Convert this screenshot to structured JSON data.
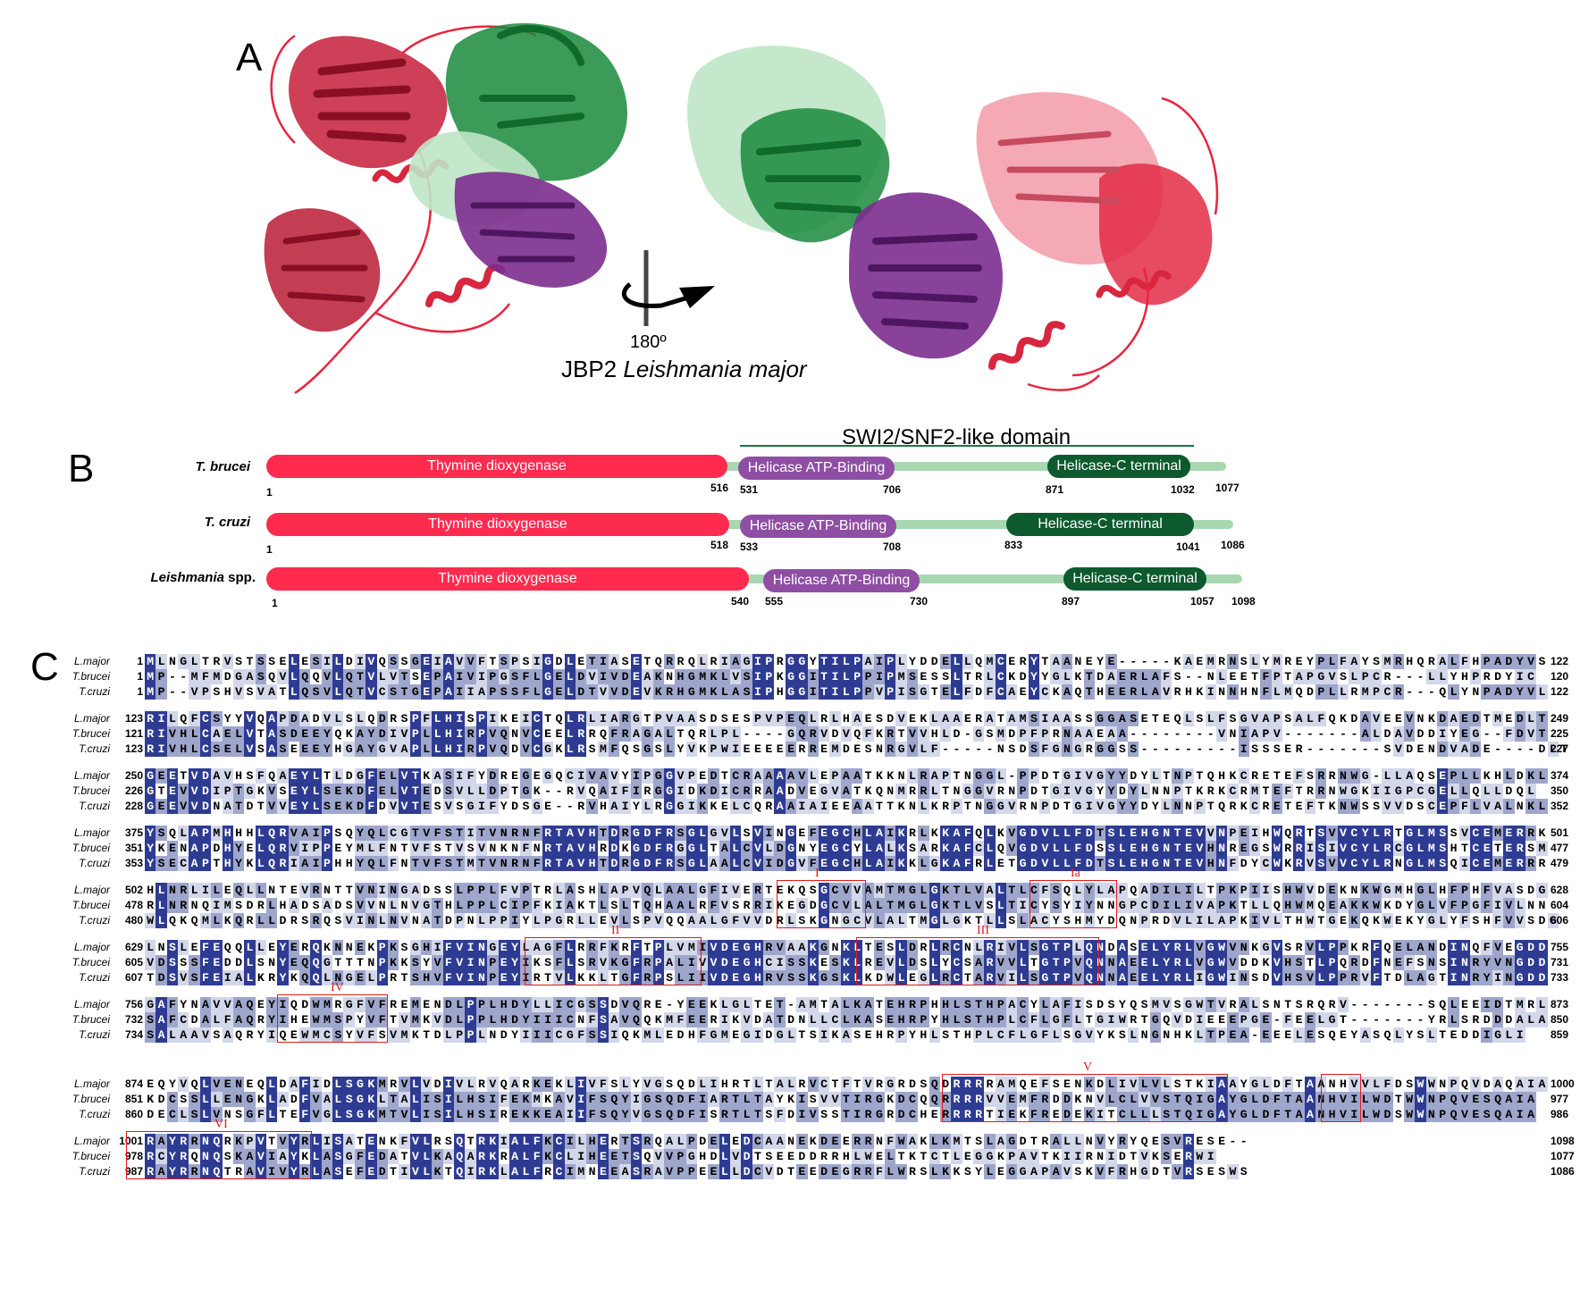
{
  "figure": {
    "panel_letters": [
      "A",
      "B",
      "C"
    ],
    "colors": {
      "dioxygenase": "#ff2b4f",
      "helicase_atp": "#8e4ea3",
      "helicase_c": "#0c5a2e",
      "linker": "#a8d8b0",
      "conserved_dark": "#2e3b92",
      "conserved_mid": "#9ea6cc",
      "conserved_light": "#d3d7ea",
      "motif_box": "#e11b1b"
    }
  },
  "panel_a": {
    "rotation_label": "180º",
    "caption_prefix": "JBP2 ",
    "caption_species": "Leishmania major"
  },
  "panel_b": {
    "domain_title": "SWI2/SNF2-like domain",
    "rows": [
      {
        "species": "T. brucei",
        "start": "1",
        "dioxygenase": {
          "label": "Thymine dioxygenase",
          "end": "516"
        },
        "atp": {
          "label": "Helicase ATP-Binding",
          "start": "531",
          "end": "706"
        },
        "hc": {
          "label": "Helicase-C terminal",
          "start": "871",
          "end": "1032"
        },
        "length": "1077"
      },
      {
        "species": "T. cruzi",
        "start": "1",
        "dioxygenase": {
          "label": "Thymine dioxygenase",
          "end": "518"
        },
        "atp": {
          "label": "Helicase ATP-Binding",
          "start": "533",
          "end": "708"
        },
        "hc": {
          "label": "Helicase-C terminal",
          "start": "833",
          "end": "1041"
        },
        "length": "1086"
      },
      {
        "species": "Leishmania",
        "species_suffix": " spp.",
        "start": "1",
        "dioxygenase": {
          "label": "Thymine dioxygenase",
          "end": "540"
        },
        "atp": {
          "label": "Helicase ATP-Binding",
          "start": "555",
          "end": "730"
        },
        "hc": {
          "label": "Helicase-C terminal",
          "start": "897",
          "end": "1057"
        },
        "length": "1098"
      }
    ]
  },
  "panel_c": {
    "species": [
      "L.major",
      "T.brucei",
      "T.cruzi"
    ],
    "motif_labels": [
      "I",
      "Ia",
      "II",
      "III",
      "IV",
      "V",
      "VI"
    ],
    "blocks": [
      {
        "starts": [
          "1",
          "1",
          "1"
        ],
        "ends": [
          "122",
          "120",
          "122"
        ],
        "seqs": [
          "MLNGLTRVSTSSELESILDIVQSSGEIAVVFTSPSIGDLETIASETQRRQLRIAGIPRGGYTILPAIPLYDDELLQMCERYTAANEYE-----KAEMRNSLYMREYPLFAYSMRHQRALFHPADYVS",
          "MP--MFMDGASQVLQQVLQTVLVTSEPAIVIPGSFLGELDVIVDEAKNHGMKLVSIPKGGITILPPIPMSESSLTRLCKDYYGLKTDAERLAFS--NLEETFPTAPGVSLPCR---LLYHPRDYIC",
          "MP--VPSHVSVATLQSVLQTVCSTGEPAIIAPSSFLGELDTVVDEVKRHGMKLASIPHGGITILPPVPISGTELFDFCAEYCKAQTHEERLAVRHKINNHNFLMQDPLLRMPCR---QLYNPADYVL"
        ]
      },
      {
        "starts": [
          "123",
          "121",
          "123"
        ],
        "ends": [
          "249",
          "225",
          "227"
        ],
        "seqs": [
          "RILQFCSYYVQAPDADVLSLQDRSPFLHISPIKEICTQLRLIARGTPVAASDSESPVPEQLRLHAESDVEKLAAERATAMSIAASSGGASETEQLSLFSGVAPSALFQKDAVEEVNKDAEDTMEDLT",
          "RIVHLCAELVTASDEEYQKAYDIVPLLHIRPVQNVCEELRRQFRAGALTQRLPL----GQRVDVQFKRTVVHLD-GSMDPFPRNAAEAA--------VNIAPV-------ALDAVDDIYEG--FDVT",
          "RIVHLCSELVSASEEEYHGAYGVAPLLHIRPVQDVCGKLRSMFQSGSLYVKPWIEEEEERREMDESNRGVLF-----NSDSFGNGRGGSS---------ISSSER-------SVDENDVADE----DLT"
        ]
      },
      {
        "starts": [
          "250",
          "226",
          "228"
        ],
        "ends": [
          "374",
          "350",
          "352"
        ],
        "seqs": [
          "GEETVDAVHSFQAEYLTLDGFELVTKASIFYDREGEGQCIVAVYIPGGVPEDTCRAAAAVLEPAATKKNLRAPTNGGL-PPDTGIVGYYDYLTNPTQHKCRETEFSRRNWG-LLAQSEPLLKHLDKL",
          "GTEVVDIPTGKVSEYLSEKDFELVTEDSVLLDPTGK--RVQAIFIRGGIDKDICRRAADVEGVATKQNMRRLTNGGVRNPDTGIVGYYDYLNNPTKRKCRMTEFTRRNWGKIIGPCGELLQLLDQL",
          "GEEVVDNATDTVVEYLSEKDFDVVTESVSGIFYDSGE--RVHAIYLRGGIKKELCQRAAIAIEEAATTKNLKRPTNGGVRNPDTGIVGYYDYLNNPTQRKCRETEFTKNWSSVVDSCEPFLVALNKL"
        ]
      },
      {
        "starts": [
          "375",
          "351",
          "353"
        ],
        "ends": [
          "501",
          "477",
          "479"
        ],
        "seqs": [
          "YSQLAPMHHHLQRVAIPSQYQLCGTVFSTITVNRNFRTAVHTDRGDFRSGLGVLSVINGEFEGCHLAIKRLKKAFQLKVGDVLLFDTSLEHGNTEVVNPEIHWQRTSVVCYLRTGLMSSVCEMERRK",
          "YKENAPDHYELQRVIPPEYMLFNTVFSTVSVNKNFNRTAVHRDKGDFRGGLTALCVLDGNYEGCYLALKSARKAFCLQVGDVLLFDSSLEHGNTEVHNREGSWRRISIVCYLRCGLMSHTCETERSM",
          "YSECAPTHYKLQRIAIPHHYQLFNTVFSTMTVNRNFRTAVHTDRGDFRSGLAALCVIDGVFEGCHLAIKKLGKAFRLETGDVLLFDTSLEHGNTEVHNFDYCWKRVSVVCYLRNGLMSQICEMERRR"
        ]
      },
      {
        "starts": [
          "502",
          "478",
          "480"
        ],
        "ends": [
          "628",
          "604",
          "606"
        ],
        "seqs": [
          "HLNRLILEQLLNTEVRNTTVNINGADSSLPPLFVPTRLASHLAPVQLAALGFIVERTEKQSGCVVAMTMGLGKTLVALTLCFSQLYLAPQADILILTPKPIISHWVDEKNKWGMHGLHFPHFVASDG",
          "RLNRNQIMSDRLHADSADSVVNLNVGTHLPPLCIPFKIAKTLSLTQHAALRFVSRRIKEGDGCVLALTMGLGKTLVSLTICYSYIYNNGPCDILIVAPKTLLQHWMQEAKKWKDYGLVFPGFIVLNN",
          "WLQKQMLKQRLLDRSRQSVINLNVNATDPNLPPIYLPGRLLEVLSPVQQAALGFVVDRLSKGNGCVLALTMGLGKTLLSLACYSHMYDQNPRDVLILAPKIVLTHWTGEKQKWEKYGLYFSHFVVSDG"
        ]
      },
      {
        "starts": [
          "629",
          "605",
          "607"
        ],
        "ends": [
          "755",
          "731",
          "733"
        ],
        "seqs": [
          "LNSLEFEQQLLEYERQKNNEKPKSGHIFVINGEYLAGFLRRFKRFTPLVMIVDEGHRVAAKGNKLTESLDRLRCNLRIVLSGTPLQNDASELYRLVGWVNKGVSRVLPPKRFQELANDINQFVEGDD",
          "VDSSSFEDDLSNYEQQGTTTNPKKSYVFVINPEYIKSFLSRVKGFRPALIVVDEGHCISSKESKLREVLDSLYCSARVVLTGTPVQNNAEELYRLVGWVDDKVHSTLPQRDFNEFSNSINRYVNGDD",
          "TDSVSFEIALKRYKQQLNGELPRTSHVFVINPEYIRTVLKKLTGFRPSLIIVDEGHRVSSKGSKLKDWLEGLRCTARVILSGTPVQNNAEELYRLIGWINSDVHSVLPPRVFTDLAGTINRYINGDD"
        ]
      },
      {
        "starts": [
          "756",
          "732",
          "734"
        ],
        "ends": [
          "873",
          "850",
          "859"
        ],
        "seqs": [
          "GAFYNAVVAQEYIQDWMRGFVFREMENDLPPLHDYLLICGSSDVQRE-YEEKLGLTET-AMTALKATEHRPHHLSTHPACYLAFISDSYQSMVSGWTVRALSNTSRQRV-------SQLEEIDTMRL",
          "SAFCDALFAQRYIHEWMSPYVFTVMKVDLPPLHDYIIICNFSAVQQKMFEERIKVDATDNLLCLKASEHRPYHLSTHPLCFLGFLTGIWRTGQVDIEEEPGE-FEELGT-------YRLSRDDDALA",
          "SALAAVSAQRYIQEWMCSYVFSVMKTDLPPLNDYIIICGFSSIQKMLEDHFGMEGIDGLTSIKASEHRPYHLSTHPLCFLGFLSGVYKSLNGNHKLTPEA-EEELESQEYASQLYSLTEDDIGLI"
        ]
      },
      {
        "starts": [
          "874",
          "851",
          "860"
        ],
        "ends": [
          "1000",
          "977",
          "986"
        ],
        "seqs": [
          "EQYVQLVENEQLDAFIDLSGKMRVLVDIVLRVQARKEKLIVFSLYVGSQDLIHRTLTALRVCTFTVRGRDSQDRRRRAMQEFSENKDLIVLVLSTKIAAYGLDFTAANHVVLFDSWWNPQVDAQAIA",
          "KDCSSLLENGKLADFVALSGKLTALISILHSIFEKMKAVIFSQYIGSQDFIARTLTAYKISVVTIRGKDCQQRRRRVVEMFRDDKNVLCLVVSTQIGAYGLDFTAANHVILWDTWWNPQVESQAIA",
          "DECLSLVNSGFLTEFVGLSGKMTVLISILHSIREKKEAIIFSQYVGSQDFISRTLTSFDIVSSTIRGRDCHERRRRTIEKFREDEKITCLLLSTQIGAYGLDFTAANHVILWDSWWNPQVESQAIA"
        ]
      },
      {
        "starts": [
          "1001",
          "978",
          "987"
        ],
        "ends": [
          "1098",
          "1077",
          "1086"
        ],
        "seqs": [
          "RAYRRNQRKPVTVYRLISATENKFVLRSQTRKIALFKCILHERTSRQALPDELEDCAANEKDEERRNFWAKLKMTSLAGDTRALLNVYRYQESVRESE--",
          "RCYRQNQSKAVIAYKLASGFEDATVLKAQARKRALFKCLIHEETSQVVPGHDLVDTSEEDDRRHLWELTKTCTLEGGKPAVTKIIRNIDTVKSERWI",
          "RAYRRNQTRAVIVYRLASEFEDTIVLKTQIRKLALFRCIMNEEASRAVPPEELLDCVDTEEDEGRRFLWRSLKKSYLEGGAPAVSKVFRHGDTVRSESWS"
        ]
      }
    ]
  }
}
